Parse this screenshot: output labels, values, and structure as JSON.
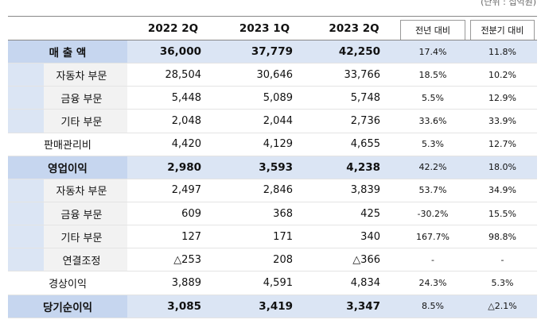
{
  "unit": "(단위 : 십억원)",
  "table": {
    "header": [
      "",
      "2022 2Q",
      "2023 1Q",
      "2023 2Q",
      "전년 대비",
      "전분기 대비"
    ],
    "rows": [
      [
        "매 출 액",
        "36,000",
        "37,779",
        "42,250",
        "17.4%",
        "11.8%"
      ],
      [
        "자동차 부문",
        "28,504",
        "30,646",
        "33,766",
        "18.5%",
        "10.2%"
      ],
      [
        "금융 부문",
        "5,448",
        "5,089",
        "5,748",
        "5.5%",
        "12.9%"
      ],
      [
        "기타 부문",
        "2,048",
        "2,044",
        "2,736",
        "33.6%",
        "33.9%"
      ],
      [
        "판매관리비",
        "4,420",
        "4,129",
        "4,655",
        "5.3%",
        "12.7%"
      ],
      [
        "영업이익",
        "2,980",
        "3,593",
        "4,238",
        "42.2%",
        "18.0%"
      ],
      [
        "자동차 부문",
        "2,497",
        "2,846",
        "3,839",
        "53.7%",
        "34.9%"
      ],
      [
        "금융 부문",
        "609",
        "368",
        "425",
        "-30.2%",
        "15.5%"
      ],
      [
        "기타 부문",
        "127",
        "171",
        "340",
        "167.7%",
        "98.8%"
      ],
      [
        "연결조정",
        "△253",
        "208",
        "△366",
        "-",
        "-"
      ],
      [
        "경상이익",
        "3,889",
        "4,591",
        "4,834",
        "24.3%",
        "5.3%"
      ],
      [
        "당기순이익",
        "3,085",
        "3,419",
        "3,347",
        "8.5%",
        "△2.1%"
      ]
    ]
  }
}
